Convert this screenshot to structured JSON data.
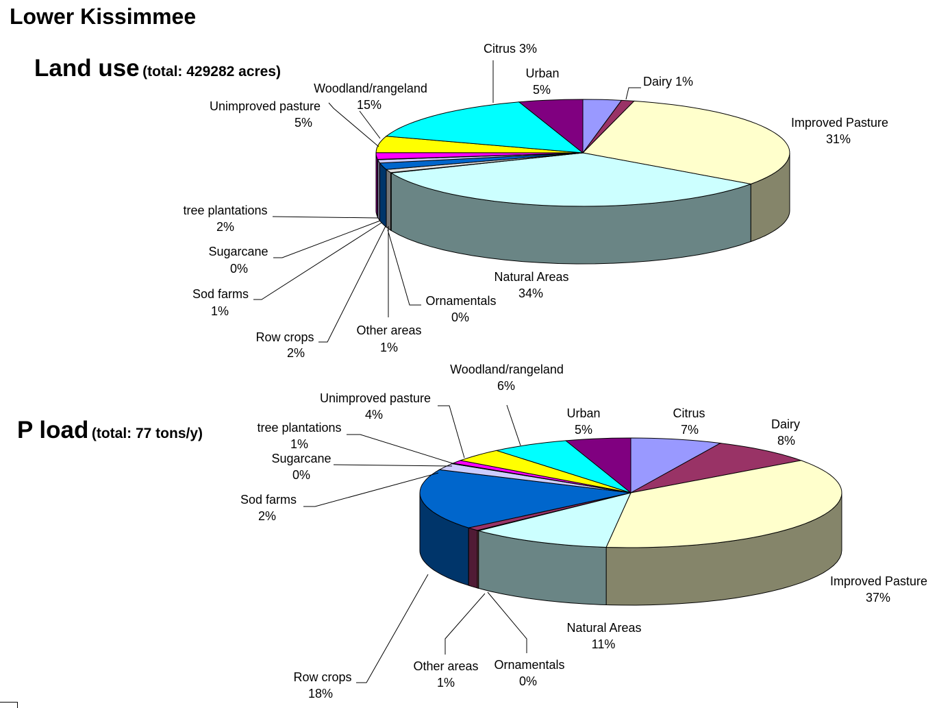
{
  "page": {
    "title": "Lower Kissimmee"
  },
  "chart_data": [
    {
      "type": "pie",
      "title": "Land use",
      "subtitle": "(total: 429282 acres)",
      "slices": [
        {
          "name": "Citrus",
          "percent": 3,
          "label": "Citrus  3%",
          "color": "#9999ff"
        },
        {
          "name": "Dairy",
          "percent": 1,
          "label": "Dairy  1%",
          "color": "#993366"
        },
        {
          "name": "Improved Pasture",
          "percent": 31,
          "label": "Improved Pasture",
          "value_label": "31%",
          "color": "#ffffcc"
        },
        {
          "name": "Natural Areas",
          "percent": 34,
          "label": "Natural Areas",
          "value_label": "34%",
          "color": "#ccffff"
        },
        {
          "name": "Ornamentals",
          "percent": 0,
          "label": "Ornamentals",
          "value_label": "0%",
          "color": "#ff8080"
        },
        {
          "name": "Other areas",
          "percent": 1,
          "label": "Other areas",
          "value_label": "1%",
          "color": "#e0e0e0"
        },
        {
          "name": "Row crops",
          "percent": 2,
          "label": "Row crops",
          "value_label": "2%",
          "color": "#0066cc"
        },
        {
          "name": "Sod farms",
          "percent": 1,
          "label": "Sod farms",
          "value_label": "1%",
          "color": "#ccccff"
        },
        {
          "name": "Sugarcane",
          "percent": 0,
          "label": "Sugarcane",
          "value_label": "0%",
          "color": "#000080"
        },
        {
          "name": "tree plantations",
          "percent": 2,
          "label": "tree plantations",
          "value_label": "2%",
          "color": "#ff00ff"
        },
        {
          "name": "Unimproved pasture",
          "percent": 5,
          "label": "Unimproved pasture",
          "value_label": "5%",
          "color": "#ffff00"
        },
        {
          "name": "Woodland/rangeland",
          "percent": 15,
          "label": "Woodland/rangeland",
          "value_label": "15%",
          "color": "#00ffff"
        },
        {
          "name": "Urban",
          "percent": 5,
          "label": "Urban",
          "value_label": "5%",
          "color": "#800080"
        }
      ]
    },
    {
      "type": "pie",
      "title": "P load",
      "subtitle": "(total: 77 tons/y)",
      "slices": [
        {
          "name": "Citrus",
          "percent": 7,
          "label": "Citrus",
          "value_label": "7%",
          "color": "#9999ff"
        },
        {
          "name": "Dairy",
          "percent": 8,
          "label": "Dairy",
          "value_label": "8%",
          "color": "#993366"
        },
        {
          "name": "Improved Pasture",
          "percent": 37,
          "label": "Improved Pasture",
          "value_label": "37%",
          "color": "#ffffcc"
        },
        {
          "name": "Natural Areas",
          "percent": 11,
          "label": "Natural Areas",
          "value_label": "11%",
          "color": "#ccffff"
        },
        {
          "name": "Ornamentals",
          "percent": 0,
          "label": "Ornamentals",
          "value_label": "0%",
          "color": "#ff8080"
        },
        {
          "name": "Other areas",
          "percent": 1,
          "label": "Other areas",
          "value_label": "1%",
          "color": "#993366"
        },
        {
          "name": "Row crops",
          "percent": 18,
          "label": "Row crops",
          "value_label": "18%",
          "color": "#0066cc"
        },
        {
          "name": "Sod farms",
          "percent": 2,
          "label": "Sod farms",
          "value_label": "2%",
          "color": "#ccccff"
        },
        {
          "name": "Sugarcane",
          "percent": 0,
          "label": "Sugarcane",
          "value_label": "0%",
          "color": "#000080"
        },
        {
          "name": "tree plantations",
          "percent": 1,
          "label": "tree plantations",
          "value_label": "1%",
          "color": "#ff00ff"
        },
        {
          "name": "Unimproved pasture",
          "percent": 4,
          "label": "Unimproved pasture",
          "value_label": "4%",
          "color": "#ffff00"
        },
        {
          "name": "Woodland/rangeland",
          "percent": 6,
          "label": "Woodland/rangeland",
          "value_label": "6%",
          "color": "#00ffff"
        },
        {
          "name": "Urban",
          "percent": 5,
          "label": "Urban",
          "value_label": "5%",
          "color": "#800080"
        }
      ]
    }
  ]
}
